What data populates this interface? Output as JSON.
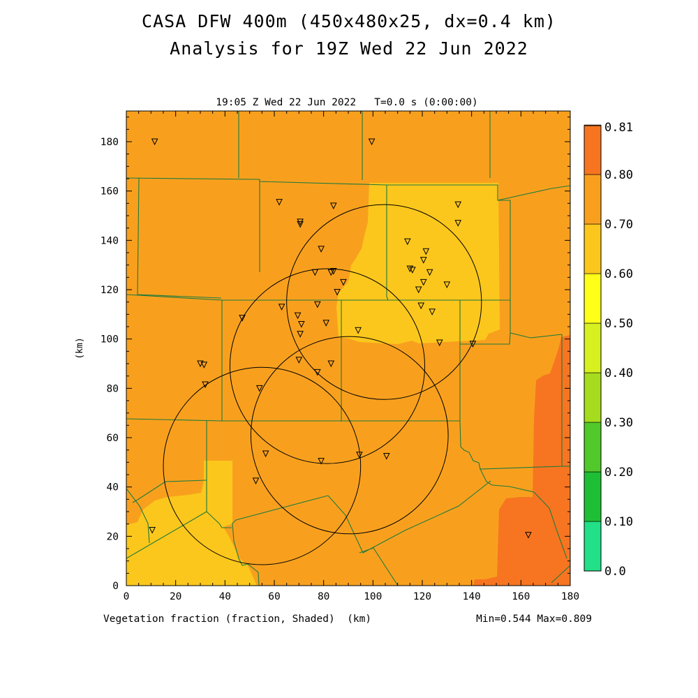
{
  "titles": {
    "line1": "CASA DFW 400m (450x480x25, dx=0.4 km)",
    "line2": "Analysis for 19Z Wed 22 Jun 2022"
  },
  "plot": {
    "subtitle": "19:05 Z Wed 22 Jun 2022   T=0.0 s (0:00:00)",
    "bottom_label": "Vegetation fraction (fraction, Shaded)  (km)",
    "y_unit": "(km)",
    "min_max": "Min=0.544 Max=0.809",
    "x_ticks": [
      "0",
      "20",
      "40",
      "60",
      "80",
      "100",
      "120",
      "140",
      "160",
      "180"
    ],
    "y_ticks": [
      "0",
      "20",
      "40",
      "60",
      "80",
      "100",
      "120",
      "140",
      "160",
      "180"
    ]
  },
  "colorbar": {
    "labels": [
      "0.0",
      "0.10",
      "0.20",
      "0.30",
      "0.40",
      "0.50",
      "0.60",
      "0.70",
      "0.80",
      "0.81"
    ],
    "colors": [
      "#22e088",
      "#1fbf35",
      "#52c92a",
      "#a6dc1d",
      "#d6f020",
      "#ffff1a",
      "#fcc71c",
      "#f8a01e",
      "#f77521",
      "#fc3a1f"
    ]
  },
  "field_colors": {
    "base": "#f8a01e",
    "low": "#fcc71c",
    "high": "#f77521",
    "county_line": "#1d7a3c"
  },
  "stations": [
    [
      11.5,
      180
    ],
    [
      99.5,
      180
    ],
    [
      62,
      155.5
    ],
    [
      84,
      154
    ],
    [
      70.5,
      146.5
    ],
    [
      70.5,
      147.5
    ],
    [
      134.5,
      154.5
    ],
    [
      134.5,
      147
    ],
    [
      79,
      136.5
    ],
    [
      114,
      139.5
    ],
    [
      121.5,
      135.5
    ],
    [
      120.5,
      132
    ],
    [
      115,
      128.5
    ],
    [
      116,
      128
    ],
    [
      118.5,
      120
    ],
    [
      123,
      127
    ],
    [
      120.5,
      123
    ],
    [
      76.5,
      127
    ],
    [
      83,
      127
    ],
    [
      84,
      127.5
    ],
    [
      88,
      123
    ],
    [
      85.5,
      119
    ],
    [
      130,
      122
    ],
    [
      119.5,
      113.5
    ],
    [
      124,
      111
    ],
    [
      63,
      113
    ],
    [
      69.5,
      109.5
    ],
    [
      77.5,
      114
    ],
    [
      71,
      106
    ],
    [
      81,
      106.5
    ],
    [
      47,
      108.5
    ],
    [
      70.5,
      102
    ],
    [
      94,
      103.5
    ],
    [
      127,
      98.5
    ],
    [
      140.5,
      98
    ],
    [
      30,
      90
    ],
    [
      31.5,
      89.5
    ],
    [
      70,
      91.5
    ],
    [
      83,
      90
    ],
    [
      77.5,
      86.5
    ],
    [
      32,
      81.5
    ],
    [
      54,
      80
    ],
    [
      56.5,
      53.5
    ],
    [
      79,
      50.5
    ],
    [
      94.5,
      53
    ],
    [
      105.5,
      52.5
    ],
    [
      52.5,
      42.5
    ],
    [
      10.5,
      22.5
    ],
    [
      163,
      20.5
    ]
  ],
  "radar_circles": [
    [
      104.5,
      115,
      39.5
    ],
    [
      81.5,
      89,
      39.5
    ],
    [
      90.5,
      61,
      40
    ],
    [
      55,
      48.5,
      40
    ]
  ]
}
